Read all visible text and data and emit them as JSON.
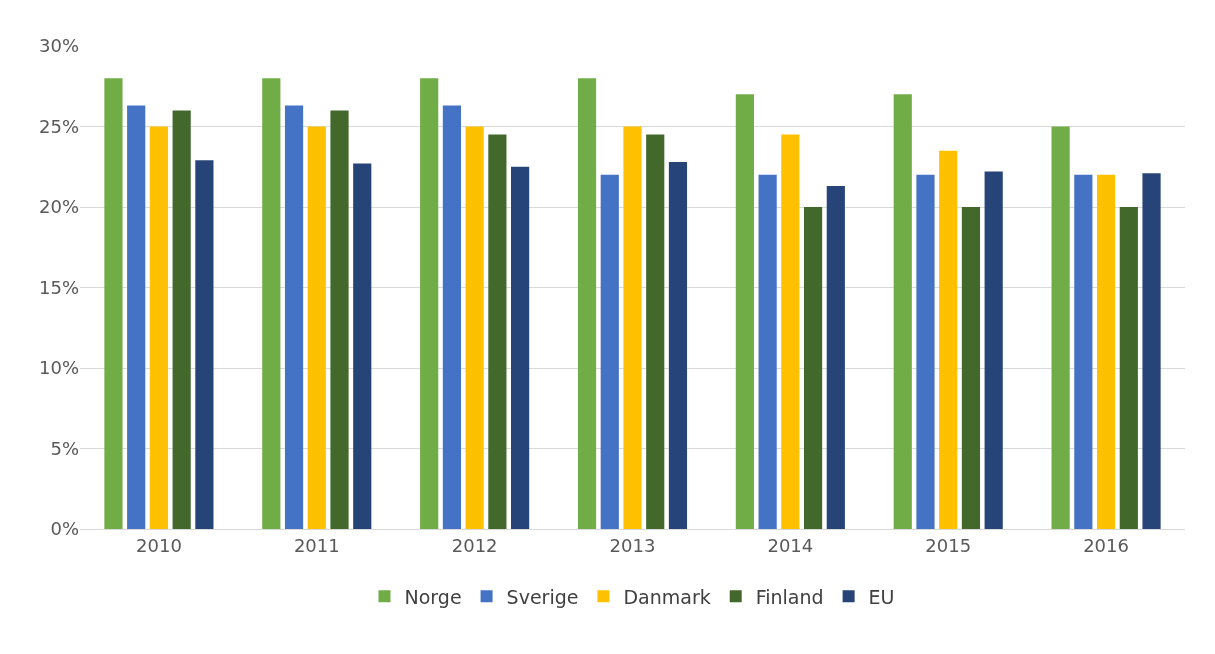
{
  "chart_data": {
    "type": "bar",
    "categories": [
      "2010",
      "2011",
      "2012",
      "2013",
      "2014",
      "2015",
      "2016"
    ],
    "series": [
      {
        "name": "Norge",
        "color": "#70ad47",
        "values": [
          28,
          28,
          28,
          28,
          27,
          27,
          25
        ]
      },
      {
        "name": "Sverige",
        "color": "#4472c4",
        "values": [
          26.3,
          26.3,
          26.3,
          22,
          22,
          22,
          22
        ]
      },
      {
        "name": "Danmark",
        "color": "#ffc000",
        "values": [
          25,
          25,
          25,
          25,
          24.5,
          23.5,
          22
        ]
      },
      {
        "name": "Finland",
        "color": "#43682b",
        "values": [
          26,
          26,
          24.5,
          24.5,
          20,
          20,
          20
        ]
      },
      {
        "name": "EU",
        "color": "#264478",
        "values": [
          22.9,
          22.7,
          22.5,
          22.8,
          21.3,
          22.2,
          22.1
        ]
      }
    ],
    "ylim": [
      0,
      30
    ],
    "yticks": [
      {
        "value": 0,
        "label": "0%"
      },
      {
        "value": 5,
        "label": "5%"
      },
      {
        "value": 10,
        "label": "10%"
      },
      {
        "value": 15,
        "label": "15%"
      },
      {
        "value": 20,
        "label": "20%"
      },
      {
        "value": 25,
        "label": "25%"
      },
      {
        "value": 30,
        "label": "30%"
      }
    ],
    "grid": "y",
    "legend": "bottom"
  }
}
